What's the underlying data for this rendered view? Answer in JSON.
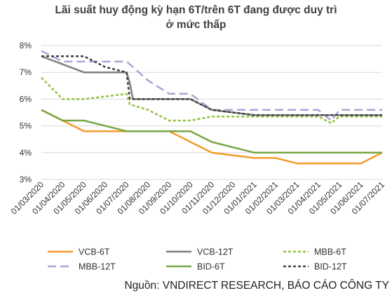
{
  "chart_data": {
    "type": "line",
    "title_line1": "Lãi suất huy động kỳ hạn 6T/trên 6T đang được duy trì",
    "title_line2": "ở mức thấp",
    "source": "Nguồn: VNDIRECT RESEARCH, BÁO CÁO CÔNG TY",
    "xlabel": "",
    "ylabel": "",
    "ylim": [
      3,
      8
    ],
    "yticks": [
      "3%",
      "4%",
      "5%",
      "6%",
      "7%",
      "8%"
    ],
    "x": [
      "01/03/2020",
      "01/04/2020",
      "01/05/2020",
      "01/06/2020",
      "01/07/2020",
      "01/08/2020",
      "01/09/2020",
      "01/10/2020",
      "01/11/2020",
      "01/12/2020",
      "01/01/2021",
      "01/02/2021",
      "01/03/2021",
      "01/04/2021",
      "01/05/2021",
      "01/06/2021",
      "01/07/2021"
    ],
    "grid": "horizontal",
    "legend_position": "bottom",
    "series": [
      {
        "name": "VCB-6T",
        "color": "#f39b2c",
        "dash": "solid",
        "points": [
          [
            0,
            5.6
          ],
          [
            1,
            5.2
          ],
          [
            2,
            4.8
          ],
          [
            3,
            4.8
          ],
          [
            4,
            4.8
          ],
          [
            4.15,
            4.8
          ],
          [
            5,
            4.8
          ],
          [
            6,
            4.8
          ],
          [
            7,
            4.4
          ],
          [
            8,
            4.0
          ],
          [
            9,
            3.9
          ],
          [
            10,
            3.8
          ],
          [
            11,
            3.8
          ],
          [
            12,
            3.6
          ],
          [
            13,
            3.6
          ],
          [
            14,
            3.6
          ],
          [
            15,
            3.6
          ],
          [
            16,
            4.0
          ]
        ]
      },
      {
        "name": "VCB-12T",
        "color": "#7f7f7f",
        "dash": "solid",
        "points": [
          [
            0,
            7.6
          ],
          [
            1,
            7.3
          ],
          [
            2,
            7.0
          ],
          [
            3,
            7.0
          ],
          [
            4,
            7.0
          ],
          [
            4.15,
            6.6
          ],
          [
            4.3,
            6.0
          ],
          [
            5,
            6.0
          ],
          [
            6,
            6.0
          ],
          [
            7,
            6.0
          ],
          [
            8,
            5.6
          ],
          [
            9,
            5.5
          ],
          [
            10,
            5.4
          ],
          [
            11,
            5.4
          ],
          [
            12,
            5.4
          ],
          [
            13,
            5.4
          ],
          [
            14,
            5.4
          ],
          [
            15,
            5.4
          ],
          [
            16,
            5.4
          ]
        ]
      },
      {
        "name": "MBB-6T",
        "color": "#92c13b",
        "dash": "short",
        "points": [
          [
            0,
            6.8
          ],
          [
            1,
            6.0
          ],
          [
            2,
            6.0
          ],
          [
            3,
            6.1
          ],
          [
            4,
            6.2
          ],
          [
            4.15,
            5.8
          ],
          [
            5,
            5.6
          ],
          [
            6,
            5.2
          ],
          [
            7,
            5.2
          ],
          [
            8,
            5.35
          ],
          [
            9,
            5.35
          ],
          [
            10,
            5.35
          ],
          [
            11,
            5.35
          ],
          [
            12,
            5.35
          ],
          [
            13,
            5.35
          ],
          [
            13.6,
            5.1
          ],
          [
            14,
            5.35
          ],
          [
            15,
            5.35
          ],
          [
            16,
            5.35
          ]
        ]
      },
      {
        "name": "MBB-12T",
        "color": "#a9a6d8",
        "dash": "long",
        "points": [
          [
            0,
            7.8
          ],
          [
            1,
            7.4
          ],
          [
            2,
            7.4
          ],
          [
            3,
            7.4
          ],
          [
            4,
            7.4
          ],
          [
            4.3,
            7.2
          ],
          [
            5,
            6.7
          ],
          [
            6,
            6.2
          ],
          [
            7,
            6.2
          ],
          [
            8,
            5.6
          ],
          [
            9,
            5.6
          ],
          [
            10,
            5.6
          ],
          [
            11,
            5.6
          ],
          [
            12,
            5.6
          ],
          [
            13,
            5.6
          ],
          [
            13.6,
            5.2
          ],
          [
            14,
            5.6
          ],
          [
            15,
            5.6
          ],
          [
            16,
            5.6
          ]
        ]
      },
      {
        "name": "BID-6T",
        "color": "#76a643",
        "dash": "solid",
        "points": [
          [
            0,
            5.6
          ],
          [
            1,
            5.2
          ],
          [
            2,
            5.2
          ],
          [
            3,
            5.0
          ],
          [
            4,
            4.8
          ],
          [
            4.15,
            4.8
          ],
          [
            5,
            4.8
          ],
          [
            6,
            4.8
          ],
          [
            7,
            4.8
          ],
          [
            8,
            4.4
          ],
          [
            9,
            4.2
          ],
          [
            10,
            4.0
          ],
          [
            11,
            4.0
          ],
          [
            12,
            4.0
          ],
          [
            13,
            4.0
          ],
          [
            14,
            4.0
          ],
          [
            15,
            4.0
          ],
          [
            16,
            4.0
          ]
        ]
      },
      {
        "name": "BID-12T",
        "color": "#404040",
        "dash": "short",
        "points": [
          [
            0,
            7.6
          ],
          [
            1,
            7.6
          ],
          [
            2,
            7.6
          ],
          [
            3,
            7.2
          ],
          [
            4,
            7.0
          ],
          [
            4.15,
            6.0
          ],
          [
            5,
            6.0
          ],
          [
            6,
            6.0
          ],
          [
            7,
            6.0
          ],
          [
            8,
            5.6
          ],
          [
            9,
            5.5
          ],
          [
            10,
            5.4
          ],
          [
            11,
            5.4
          ],
          [
            12,
            5.4
          ],
          [
            13,
            5.4
          ],
          [
            14,
            5.4
          ],
          [
            15,
            5.4
          ],
          [
            16,
            5.4
          ]
        ]
      }
    ]
  }
}
